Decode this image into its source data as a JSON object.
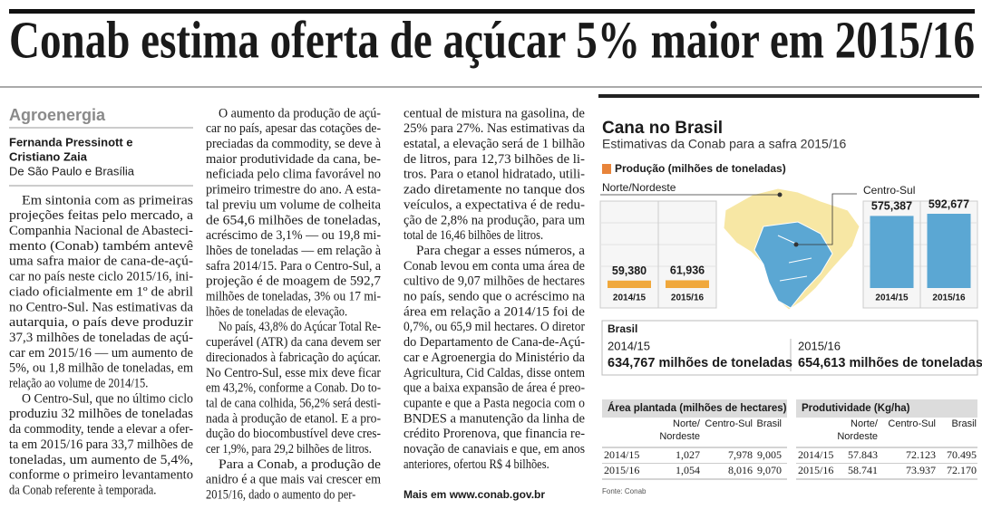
{
  "headline": "Conab estima oferta de açúcar 5% maior em 2015/16",
  "section": "Agroenergia",
  "byline": [
    "Fernanda Pressinott e",
    "Cristiano Zaia"
  ],
  "dateline": "De São Paulo e Brasília",
  "columns": [
    [
      [
        "Em sintonia com as primeiras",
        "projeções feitas pelo mercado, a",
        "Companhia Nacional de Abasteci-",
        "mento (Conab) também antevê",
        "uma safra maior de cana-de-açú-",
        "car no país neste ciclo 2015/16, ini-",
        "ciado oficialmente em 1º de abril",
        "no Centro-Sul. Nas estimativas da",
        "autarquia, o país deve produzir",
        "37,3 milhões de toneladas de açú-",
        "car em 2015/16 — um aumento de",
        "5%, ou 1,8 milhão de toneladas, em",
        "relação ao volume de 2014/15."
      ],
      [
        "O Centro-Sul, que no último ciclo",
        "produziu 32 milhões de toneladas",
        "da commodity, tende a elevar a ofer-",
        "ta em 2015/16 para 33,7 milhões de",
        "toneladas, um aumento de 5,4%,",
        "conforme o primeiro levantamento",
        "da Conab referente à temporada."
      ]
    ],
    [
      [
        "O aumento da produção de açú-",
        "car no país, apesar das cotações de-",
        "preciadas da commodity, se deve à",
        "maior produtividade da cana, be-",
        "neficiada pelo clima favorável no",
        "primeiro trimestre do ano. A esta-",
        "tal previu um volume de colheita",
        "de 654,6 milhões de toneladas,",
        "acréscimo de 3,1% — ou 19,8 mi-",
        "lhões de toneladas — em relação à",
        "safra 2014/15. Para o Centro-Sul, a",
        "projeção é de moagem de 592,7",
        "milhões de toneladas, 3% ou 17 mi-",
        "lhões de toneladas de elevação."
      ],
      [
        "No país, 43,8% do Açúcar Total Re-",
        "cuperável (ATR) da cana devem ser",
        "direcionados à fabricação do açúcar.",
        "No Centro-Sul, esse mix deve ficar",
        "em 43,2%, conforme a Conab. Do to-",
        "tal de cana colhida, 56,2% será desti-",
        "nada à produção de etanol. E a pro-",
        "dução do biocombustível deve cres-",
        "cer 1,9%, para 29,2 bilhões de litros."
      ],
      [
        "Para a Conab, a produção de",
        "anidro é a que mais vai crescer em",
        "2015/16, dado o aumento do per-"
      ]
    ],
    [
      [
        "centual de mistura na gasolina, de",
        "25% para 27%. Nas estimativas da",
        "estatal, a elevação será de 1 bilhão",
        "de litros, para 12,73 bilhões de li-",
        "tros. Para o etanol hidratado, utili-",
        "zado diretamente no tanque dos",
        "veículos, a expectativa é de redu-",
        "ção de 2,8% na produção, para um",
        "total de 16,46 bilhões de litros."
      ],
      [
        "Para chegar a esses números, a",
        "Conab levou em conta uma área de",
        "cultivo de 9,07 milhões de hectares",
        "no país, sendo que o acréscimo na",
        "área em relação a 2014/15 foi de",
        "0,7%, ou 65,9 mil hectares. O diretor",
        "do Departamento de Cana-de-Açú-",
        "car e Agroenergia do Ministério da",
        "Agricultura, Cid Caldas, disse ontem",
        "que a baixa expansão de área é preo-",
        "cupante e que a Pasta negocia com o",
        "BNDES a manutenção da linha de",
        "crédito Prorenova, que financia re-",
        "novação de canaviais e que, em anos",
        "anteriores, ofertou R$ 4 bilhões."
      ]
    ]
  ],
  "more": "Mais em www.conab.gov.br",
  "infographic": {
    "title": "Cana no Brasil",
    "subtitle": "Estimativas da Conab para a safra 2015/16",
    "legend": "Produção (milhões de toneladas)",
    "regions": [
      {
        "name": "Norte/Nordeste",
        "color": "#f0a83c",
        "categories": [
          "2014/15",
          "2015/16"
        ],
        "values": [
          59380,
          61936
        ],
        "value_labels": [
          "59,380",
          "61,936"
        ]
      },
      {
        "name": "Centro-Sul",
        "color": "#5ba7d3",
        "categories": [
          "2014/15",
          "2015/16"
        ],
        "values": [
          575387,
          592677
        ],
        "value_labels": [
          "575,387",
          "592,677"
        ]
      }
    ],
    "brasil": {
      "title": "Brasil",
      "items": [
        {
          "year": "2014/15",
          "value": "634,767 milhões de toneladas"
        },
        {
          "year": "2015/16",
          "value": "654,613 milhões de toneladas"
        }
      ]
    },
    "tables": [
      {
        "title": "Área plantada  (milhões de hectares)",
        "columns": [
          [
            "Norte/",
            "Nordeste"
          ],
          [
            "Centro-Sul"
          ],
          [
            "Brasil"
          ]
        ],
        "rows": [
          [
            "2014/15",
            "1,027",
            "7,978",
            "9,005"
          ],
          [
            "2015/16",
            "1,054",
            "8,016",
            "9,070"
          ]
        ]
      },
      {
        "title": "Produtividade (Kg/ha)",
        "columns": [
          [
            "Norte/",
            "Nordeste"
          ],
          [
            "Centro-Sul"
          ],
          [
            "Brasil"
          ]
        ],
        "rows": [
          [
            "2014/15",
            "57.843",
            "72.123",
            "70.495"
          ],
          [
            "2015/16",
            "58.741",
            "73.937",
            "72.170"
          ]
        ]
      }
    ],
    "source": "Fonte: Conab"
  }
}
